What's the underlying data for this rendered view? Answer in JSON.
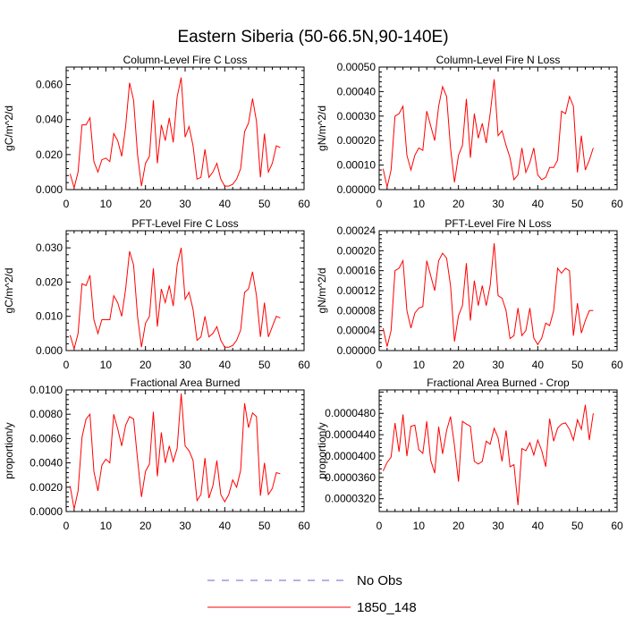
{
  "page_title": "Eastern Siberia (50-66.5N,90-140E)",
  "colors": {
    "model": "#ff0000",
    "obs": "#6666cc",
    "axis": "#000000"
  },
  "legend": {
    "obs_label": "No Obs",
    "model_label": "1850_148"
  },
  "chart_data": [
    {
      "type": "line",
      "title": "Column-Level Fire C Loss",
      "ylabel": "gC/m^2/d",
      "xlim": [
        0,
        60
      ],
      "ylim": [
        0,
        0.07
      ],
      "xticks": [
        0,
        10,
        20,
        30,
        40,
        50,
        60
      ],
      "yticks": [
        0,
        0.02,
        0.04,
        0.06
      ],
      "ytick_labels": [
        "0.000",
        "0.020",
        "0.040",
        "0.060"
      ],
      "series": [
        {
          "name": "1850_148",
          "x": [
            1,
            2,
            3,
            4,
            5,
            6,
            7,
            8,
            9,
            10,
            11,
            12,
            13,
            14,
            15,
            16,
            17,
            18,
            19,
            20,
            21,
            22,
            23,
            24,
            25,
            26,
            27,
            28,
            29,
            30,
            31,
            32,
            33,
            34,
            35,
            36,
            37,
            38,
            39,
            40,
            41,
            42,
            43,
            44,
            45,
            46,
            47,
            48,
            49,
            50,
            51,
            52,
            53,
            54
          ],
          "values": [
            0.009,
            0.001,
            0.01,
            0.037,
            0.037,
            0.041,
            0.016,
            0.01,
            0.017,
            0.018,
            0.016,
            0.032,
            0.028,
            0.019,
            0.036,
            0.061,
            0.051,
            0.02,
            0.002,
            0.015,
            0.019,
            0.051,
            0.015,
            0.037,
            0.028,
            0.041,
            0.027,
            0.053,
            0.064,
            0.03,
            0.036,
            0.025,
            0.006,
            0.007,
            0.023,
            0.007,
            0.01,
            0.015,
            0.006,
            0.002,
            0.002,
            0.003,
            0.006,
            0.012,
            0.033,
            0.038,
            0.052,
            0.039,
            0.007,
            0.032,
            0.01,
            0.015,
            0.025,
            0.024
          ]
        }
      ]
    },
    {
      "type": "line",
      "title": "Column-Level Fire N Loss",
      "ylabel": "gN/m^2/d",
      "xlim": [
        0,
        60
      ],
      "ylim": [
        0,
        0.0005
      ],
      "xticks": [
        0,
        10,
        20,
        30,
        40,
        50,
        60
      ],
      "yticks": [
        0,
        0.0001,
        0.0002,
        0.0003,
        0.0004,
        0.0005
      ],
      "ytick_labels": [
        "0.00000",
        "0.00010",
        "0.00020",
        "0.00030",
        "0.00040",
        "0.00050"
      ],
      "series": [
        {
          "name": "1850_148",
          "x": [
            1,
            2,
            3,
            4,
            5,
            6,
            7,
            8,
            9,
            10,
            11,
            12,
            13,
            14,
            15,
            16,
            17,
            18,
            19,
            20,
            21,
            22,
            23,
            24,
            25,
            26,
            27,
            28,
            29,
            30,
            31,
            32,
            33,
            34,
            35,
            36,
            37,
            38,
            39,
            40,
            41,
            42,
            43,
            44,
            45,
            46,
            47,
            48,
            49,
            50,
            51,
            52,
            53,
            54
          ],
          "values": [
            8.5e-05,
            1e-05,
            8e-05,
            0.0003,
            0.00031,
            0.00034,
            0.00014,
            8e-05,
            0.00014,
            0.00017,
            0.00016,
            0.00032,
            0.00026,
            0.0002,
            0.00034,
            0.00042,
            0.00038,
            0.00017,
            3e-05,
            0.00014,
            0.00018,
            0.00037,
            0.00013,
            0.00031,
            0.00021,
            0.00027,
            0.00019,
            0.00031,
            0.00045,
            0.00022,
            0.00024,
            0.00018,
            0.00013,
            4e-05,
            6e-05,
            0.00017,
            7e-05,
            0.00011,
            0.00017,
            6e-05,
            4e-05,
            5e-05,
            9e-05,
            9e-05,
            0.00012,
            0.00032,
            0.00031,
            0.00038,
            0.00034,
            7e-05,
            0.00022,
            8e-05,
            0.00012,
            0.00017
          ]
        }
      ]
    },
    {
      "type": "line",
      "title": "PFT-Level Fire C Loss",
      "ylabel": "gC/m^2/d",
      "xlim": [
        0,
        60
      ],
      "ylim": [
        0,
        0.035
      ],
      "xticks": [
        0,
        10,
        20,
        30,
        40,
        50,
        60
      ],
      "yticks": [
        0,
        0.01,
        0.02,
        0.03
      ],
      "ytick_labels": [
        "0.000",
        "0.010",
        "0.020",
        "0.030"
      ],
      "series": [
        {
          "name": "1850_148",
          "x": [
            1,
            2,
            3,
            4,
            5,
            6,
            7,
            8,
            9,
            10,
            11,
            12,
            13,
            14,
            15,
            16,
            17,
            18,
            19,
            20,
            21,
            22,
            23,
            24,
            25,
            26,
            27,
            28,
            29,
            30,
            31,
            32,
            33,
            34,
            35,
            36,
            37,
            38,
            39,
            40,
            41,
            42,
            43,
            44,
            45,
            46,
            47,
            48,
            49,
            50,
            51,
            52,
            53,
            54
          ],
          "values": [
            0.0045,
            0.0005,
            0.005,
            0.0195,
            0.019,
            0.022,
            0.009,
            0.005,
            0.009,
            0.009,
            0.009,
            0.016,
            0.014,
            0.01,
            0.018,
            0.029,
            0.025,
            0.01,
            0.001,
            0.008,
            0.01,
            0.024,
            0.007,
            0.018,
            0.014,
            0.019,
            0.013,
            0.025,
            0.03,
            0.015,
            0.017,
            0.012,
            0.003,
            0.004,
            0.01,
            0.004,
            0.005,
            0.007,
            0.003,
            0.001,
            0.001,
            0.0015,
            0.003,
            0.006,
            0.017,
            0.018,
            0.023,
            0.016,
            0.004,
            0.014,
            0.004,
            0.007,
            0.01,
            0.0095
          ]
        }
      ]
    },
    {
      "type": "line",
      "title": "PFT-Level Fire N Loss",
      "ylabel": "gN/m^2/d",
      "xlim": [
        0,
        60
      ],
      "ylim": [
        0,
        0.00024
      ],
      "xticks": [
        0,
        10,
        20,
        30,
        40,
        50,
        60
      ],
      "yticks": [
        0,
        4e-05,
        8e-05,
        0.00012,
        0.00016,
        0.0002,
        0.00024
      ],
      "ytick_labels": [
        "0.00000",
        "0.00004",
        "0.00008",
        "0.00012",
        "0.00016",
        "0.00020",
        "0.00024"
      ],
      "series": [
        {
          "name": "1850_148",
          "x": [
            1,
            2,
            3,
            4,
            5,
            6,
            7,
            8,
            9,
            10,
            11,
            12,
            13,
            14,
            15,
            16,
            17,
            18,
            19,
            20,
            21,
            22,
            23,
            24,
            25,
            26,
            27,
            28,
            29,
            30,
            31,
            32,
            33,
            34,
            35,
            36,
            37,
            38,
            39,
            40,
            41,
            42,
            43,
            44,
            45,
            46,
            47,
            48,
            49,
            50,
            51,
            52,
            53,
            54
          ],
          "values": [
            4.5e-05,
            8e-06,
            4e-05,
            0.00016,
            0.000165,
            0.00018,
            8e-05,
            4.5e-05,
            7.5e-05,
            8.5e-05,
            8.8e-05,
            0.00018,
            0.00015,
            0.00012,
            0.00018,
            0.000195,
            0.000185,
            0.00013,
            1.8e-05,
            7e-05,
            9e-05,
            0.000175,
            6e-05,
            0.00014,
            9e-05,
            0.00013,
            9e-05,
            0.00013,
            0.000215,
            0.00011,
            0.000105,
            8e-05,
            2.4e-05,
            3e-05,
            8.5e-05,
            3e-05,
            4e-05,
            8.5e-05,
            2.5e-05,
            1.2e-05,
            2.5e-05,
            5.5e-05,
            5e-05,
            8e-05,
            0.000165,
            0.000155,
            0.000165,
            0.00016,
            3e-05,
            9.5e-05,
            3.5e-05,
            6e-05,
            8e-05,
            8e-05
          ]
        }
      ]
    },
    {
      "type": "line",
      "title": "Fractional Area Burned",
      "ylabel": "proportion/y",
      "xlim": [
        0,
        60
      ],
      "ylim": [
        0,
        0.01
      ],
      "xticks": [
        0,
        10,
        20,
        30,
        40,
        50,
        60
      ],
      "yticks": [
        0,
        0.002,
        0.004,
        0.006,
        0.008,
        0.01
      ],
      "ytick_labels": [
        "0.0000",
        "0.0020",
        "0.0040",
        "0.0060",
        "0.0080",
        "0.0100"
      ],
      "series": [
        {
          "name": "1850_148",
          "x": [
            1,
            2,
            3,
            4,
            5,
            6,
            7,
            8,
            9,
            10,
            11,
            12,
            13,
            14,
            15,
            16,
            17,
            18,
            19,
            20,
            21,
            22,
            23,
            24,
            25,
            26,
            27,
            28,
            29,
            30,
            31,
            32,
            33,
            34,
            35,
            36,
            37,
            38,
            39,
            40,
            41,
            42,
            43,
            44,
            45,
            46,
            47,
            48,
            49,
            50,
            51,
            52,
            53,
            54
          ],
          "values": [
            0.0021,
            0.0002,
            0.0017,
            0.0061,
            0.0076,
            0.008,
            0.0033,
            0.0017,
            0.0038,
            0.0043,
            0.004,
            0.008,
            0.0068,
            0.0054,
            0.0071,
            0.0078,
            0.0076,
            0.0043,
            0.0012,
            0.0033,
            0.0039,
            0.0082,
            0.0029,
            0.0065,
            0.004,
            0.0054,
            0.0041,
            0.0052,
            0.0097,
            0.0054,
            0.005,
            0.0042,
            0.0009,
            0.0014,
            0.0044,
            0.0011,
            0.0021,
            0.0042,
            0.0014,
            0.0008,
            0.0014,
            0.0026,
            0.002,
            0.0034,
            0.0089,
            0.0069,
            0.0081,
            0.0078,
            0.0013,
            0.004,
            0.0014,
            0.0019,
            0.0032,
            0.0031
          ]
        }
      ]
    },
    {
      "type": "line",
      "title": "Fractional Area Burned - Crop",
      "ylabel": "proportion/y",
      "xlim": [
        0,
        60
      ],
      "ylim": [
        2.96e-05,
        5.24e-05
      ],
      "xticks": [
        0,
        10,
        20,
        30,
        40,
        50,
        60
      ],
      "yticks": [
        3.2e-05,
        3.6e-05,
        4e-05,
        4.4e-05,
        4.8e-05
      ],
      "ytick_labels": [
        "0.0000320",
        "0.0000360",
        "0.0000400",
        "0.0000440",
        "0.0000480"
      ],
      "series": [
        {
          "name": "1850_148",
          "x": [
            1,
            2,
            3,
            4,
            5,
            6,
            7,
            8,
            9,
            10,
            11,
            12,
            13,
            14,
            15,
            16,
            17,
            18,
            19,
            20,
            21,
            22,
            23,
            24,
            25,
            26,
            27,
            28,
            29,
            30,
            31,
            32,
            33,
            34,
            35,
            36,
            37,
            38,
            39,
            40,
            41,
            42,
            43,
            44,
            45,
            46,
            47,
            48,
            49,
            50,
            51,
            52,
            53,
            54
          ],
          "values": [
            3.72e-05,
            3.88e-05,
            3.98e-05,
            4.62e-05,
            4.08e-05,
            4.78e-05,
            4e-05,
            4.56e-05,
            4.58e-05,
            4.12e-05,
            4.05e-05,
            4.65e-05,
            3.92e-05,
            3.68e-05,
            4.55e-05,
            4.04e-05,
            4.48e-05,
            4.74e-05,
            4.2e-05,
            3.52e-05,
            4.65e-05,
            4.6e-05,
            4.56e-05,
            3.9e-05,
            3.85e-05,
            3.9e-05,
            4.28e-05,
            4.22e-05,
            4.52e-05,
            4.34e-05,
            3.9e-05,
            4.48e-05,
            3.8e-05,
            3.84e-05,
            3.08e-05,
            4.14e-05,
            4.1e-05,
            4.25e-05,
            4.02e-05,
            4.3e-05,
            4.1e-05,
            3.8e-05,
            4.7e-05,
            4.28e-05,
            4.52e-05,
            4.6e-05,
            4.62e-05,
            4.5e-05,
            4.3e-05,
            4.68e-05,
            4.5e-05,
            4.96e-05,
            4.3e-05,
            4.8e-05
          ]
        }
      ]
    }
  ]
}
